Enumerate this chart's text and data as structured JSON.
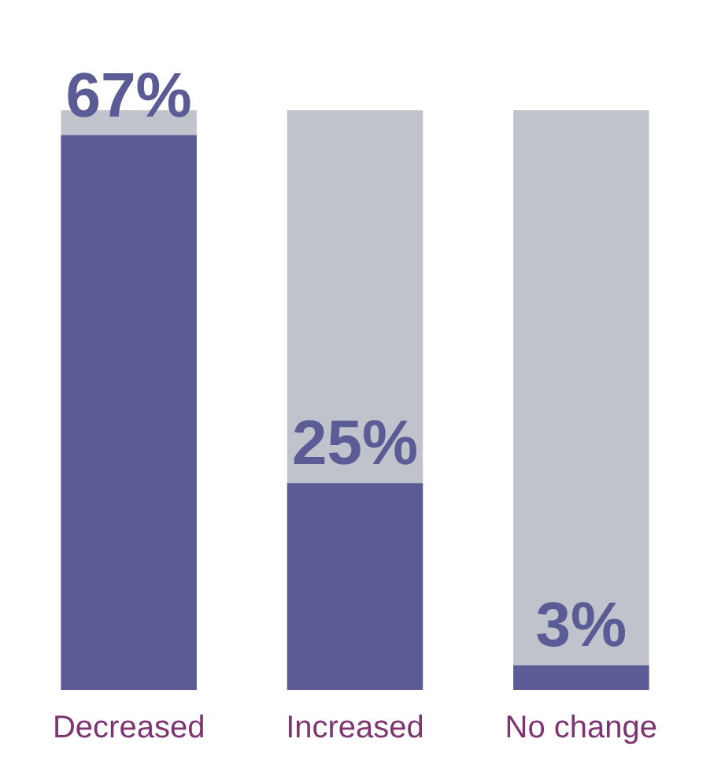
{
  "chart_data": {
    "type": "bar",
    "categories": [
      "Decreased",
      "Increased",
      "No change"
    ],
    "values": [
      67,
      25,
      3
    ],
    "value_labels": [
      "67%",
      "25%",
      "3%"
    ],
    "color": "#5b5b95",
    "tick_labels": "x"
  }
}
